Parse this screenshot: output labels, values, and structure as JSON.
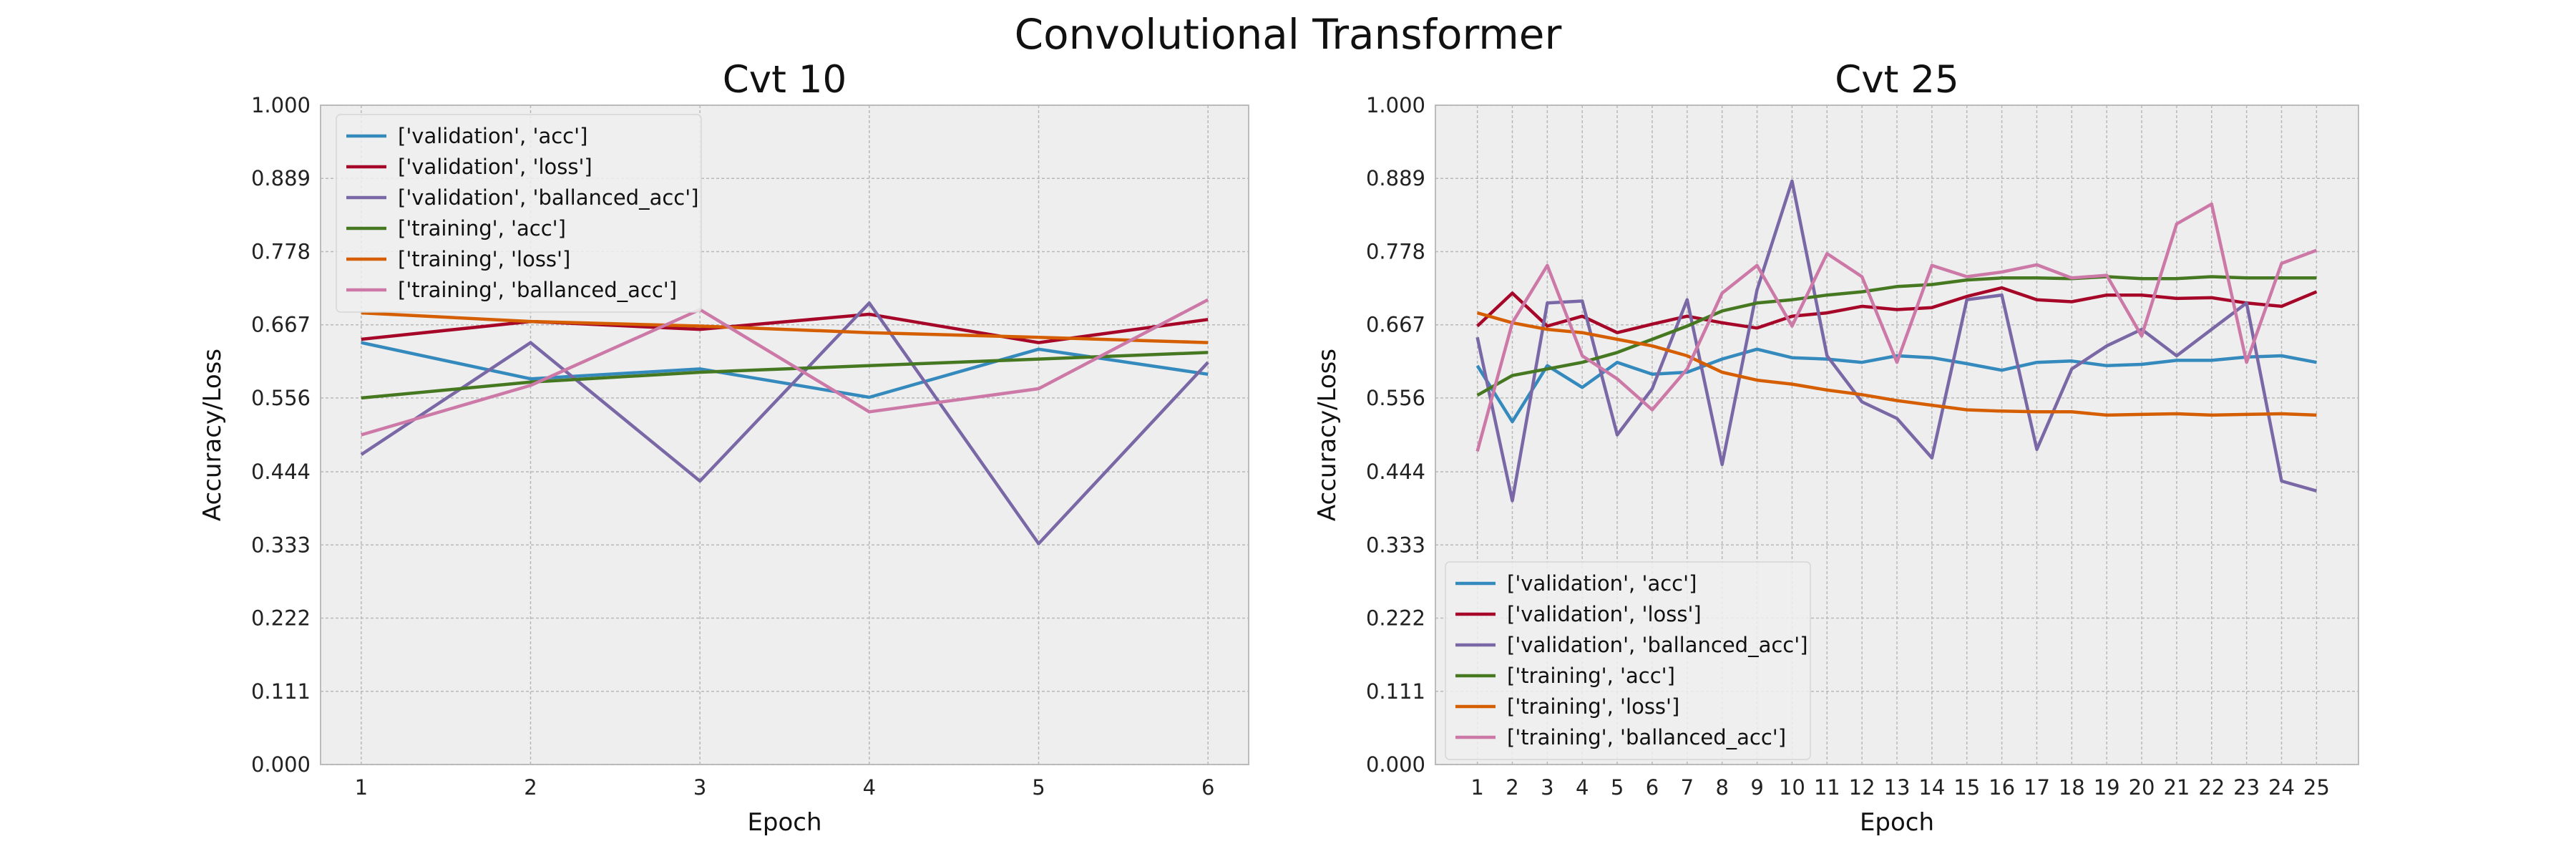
{
  "figure_title": "Convolutional Transformer",
  "colors": {
    "validation_acc": "#348abd",
    "validation_loss": "#a60628",
    "validation_ballanced_acc": "#7a68a6",
    "training_acc": "#467821",
    "training_loss": "#d55e00",
    "training_ballanced_acc": "#cc79a7",
    "plot_background": "#eeeeee",
    "grid": "#b8b8b8"
  },
  "chart_data": [
    {
      "type": "line",
      "title": "Cvt 10",
      "xlabel": "Epoch",
      "ylabel": "Accuracy/Loss",
      "ylim": [
        0,
        1
      ],
      "xlim": [
        0.76,
        6.24
      ],
      "grid": true,
      "legend": "top-left",
      "x": [
        1,
        2,
        3,
        4,
        5,
        6
      ],
      "x_tick_labels": [
        "1",
        "2",
        "3",
        "4",
        "5",
        "6"
      ],
      "y_tick_labels": [
        "0.000",
        "0.111",
        "0.222",
        "0.333",
        "0.444",
        "0.556",
        "0.667",
        "0.778",
        "0.889",
        "1.000"
      ],
      "series": [
        {
          "name": "['validation', 'acc']",
          "values": [
            0.64,
            0.585,
            0.6,
            0.557,
            0.63,
            0.592
          ]
        },
        {
          "name": "['validation', 'loss']",
          "values": [
            0.645,
            0.672,
            0.66,
            0.683,
            0.64,
            0.675
          ]
        },
        {
          "name": "['validation', 'ballanced_acc']",
          "values": [
            0.47,
            0.64,
            0.43,
            0.7,
            0.335,
            0.61
          ]
        },
        {
          "name": "['training', 'acc']",
          "values": [
            0.556,
            0.58,
            0.595,
            0.605,
            0.615,
            0.625
          ]
        },
        {
          "name": "['training', 'loss']",
          "values": [
            0.685,
            0.672,
            0.665,
            0.655,
            0.648,
            0.64
          ]
        },
        {
          "name": "['training', 'ballanced_acc']",
          "values": [
            0.5,
            0.575,
            0.69,
            0.535,
            0.57,
            0.705
          ]
        }
      ]
    },
    {
      "type": "line",
      "title": "Cvt 25",
      "xlabel": "Epoch",
      "ylabel": "Accuracy/Loss",
      "ylim": [
        0,
        1
      ],
      "xlim": [
        -0.2,
        26.2
      ],
      "grid": true,
      "legend": "bottom-left",
      "x": [
        1,
        2,
        3,
        4,
        5,
        6,
        7,
        8,
        9,
        10,
        11,
        12,
        13,
        14,
        15,
        16,
        17,
        18,
        19,
        20,
        21,
        22,
        23,
        24,
        25
      ],
      "x_tick_labels": [
        "1",
        "2",
        "3",
        "4",
        "5",
        "6",
        "7",
        "8",
        "9",
        "10",
        "11",
        "12",
        "13",
        "14",
        "15",
        "16",
        "17",
        "18",
        "19",
        "20",
        "21",
        "22",
        "23",
        "24",
        "25"
      ],
      "y_tick_labels": [
        "0.000",
        "0.111",
        "0.222",
        "0.333",
        "0.444",
        "0.556",
        "0.667",
        "0.778",
        "0.889",
        "1.000"
      ],
      "series": [
        {
          "name": "['validation', 'acc']",
          "values": [
            0.605,
            0.52,
            0.605,
            0.572,
            0.61,
            0.592,
            0.595,
            0.615,
            0.63,
            0.617,
            0.615,
            0.61,
            0.62,
            0.617,
            0.608,
            0.598,
            0.61,
            0.612,
            0.605,
            0.607,
            0.613,
            0.613,
            0.618,
            0.62,
            0.61
          ]
        },
        {
          "name": "['validation', 'loss']",
          "values": [
            0.665,
            0.715,
            0.665,
            0.68,
            0.655,
            0.668,
            0.68,
            0.67,
            0.662,
            0.68,
            0.685,
            0.695,
            0.69,
            0.693,
            0.71,
            0.723,
            0.705,
            0.702,
            0.712,
            0.712,
            0.707,
            0.708,
            0.7,
            0.695,
            0.717
          ]
        },
        {
          "name": "['validation', 'ballanced_acc']",
          "values": [
            0.648,
            0.4,
            0.7,
            0.703,
            0.5,
            0.57,
            0.705,
            0.455,
            0.72,
            0.885,
            0.62,
            0.55,
            0.525,
            0.465,
            0.705,
            0.712,
            0.478,
            0.6,
            0.635,
            0.66,
            0.62,
            0.66,
            0.7,
            0.43,
            0.415
          ]
        },
        {
          "name": "['training', 'acc']",
          "values": [
            0.56,
            0.59,
            0.6,
            0.61,
            0.625,
            0.645,
            0.665,
            0.688,
            0.7,
            0.705,
            0.712,
            0.717,
            0.725,
            0.728,
            0.735,
            0.738,
            0.738,
            0.737,
            0.74,
            0.737,
            0.737,
            0.74,
            0.738,
            0.738,
            0.738
          ]
        },
        {
          "name": "['training', 'loss']",
          "values": [
            0.685,
            0.67,
            0.66,
            0.655,
            0.645,
            0.635,
            0.62,
            0.595,
            0.583,
            0.577,
            0.568,
            0.561,
            0.552,
            0.545,
            0.538,
            0.536,
            0.535,
            0.535,
            0.53,
            0.531,
            0.532,
            0.53,
            0.531,
            0.532,
            0.53
          ]
        },
        {
          "name": "['training', 'ballanced_acc']",
          "values": [
            0.475,
            0.67,
            0.757,
            0.62,
            0.585,
            0.538,
            0.6,
            0.715,
            0.757,
            0.665,
            0.775,
            0.74,
            0.61,
            0.757,
            0.74,
            0.747,
            0.758,
            0.738,
            0.742,
            0.65,
            0.82,
            0.85,
            0.61,
            0.76,
            0.78
          ]
        }
      ]
    }
  ]
}
